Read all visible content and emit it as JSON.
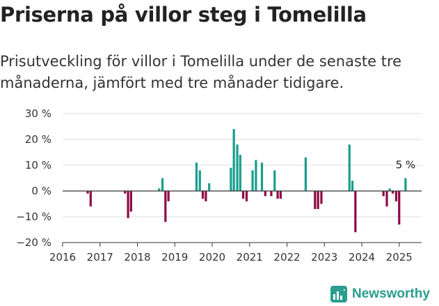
{
  "title": "Priserna på villor steg i Tomelilla",
  "subtitle": "Prisutveckling för villor i Tomelilla under de senaste tre månaderna, jämfört med tre månader tidigare.",
  "logo_text": "Newsworthy",
  "colors": {
    "positive": "#1a9e8f",
    "negative": "#8c0a47",
    "grid": "#dddddd",
    "axis": "#333333",
    "logo": "#2a9d8f"
  },
  "chart_data": {
    "type": "bar",
    "title": "Priserna på villor steg i Tomelilla",
    "xlabel": "",
    "ylabel": "",
    "ylim": [
      -20,
      30
    ],
    "xlim": [
      2016,
      2025.6
    ],
    "y_ticks": [
      -20,
      -10,
      0,
      10,
      20,
      30
    ],
    "y_tick_labels": [
      "−20 %",
      "−10 %",
      "0 %",
      "10 %",
      "20 %",
      "30 %"
    ],
    "x_ticks": [
      2016,
      2017,
      2018,
      2019,
      2020,
      2021,
      2022,
      2023,
      2024,
      2025
    ],
    "x_tick_labels": [
      "2016",
      "2017",
      "2018",
      "2019",
      "2020",
      "2021",
      "2022",
      "2023",
      "2024",
      "2025"
    ],
    "grid": "horizontal",
    "annotation": "5 %",
    "points": [
      {
        "x": 2016.67,
        "y": -1
      },
      {
        "x": 2016.75,
        "y": -6
      },
      {
        "x": 2017.67,
        "y": -1
      },
      {
        "x": 2017.75,
        "y": -10.5
      },
      {
        "x": 2017.83,
        "y": -8
      },
      {
        "x": 2018.58,
        "y": 1
      },
      {
        "x": 2018.67,
        "y": 5
      },
      {
        "x": 2018.75,
        "y": -12
      },
      {
        "x": 2018.83,
        "y": -4
      },
      {
        "x": 2019.58,
        "y": 11
      },
      {
        "x": 2019.67,
        "y": 8
      },
      {
        "x": 2019.75,
        "y": -3
      },
      {
        "x": 2019.83,
        "y": -4
      },
      {
        "x": 2019.92,
        "y": 3
      },
      {
        "x": 2020.5,
        "y": 9
      },
      {
        "x": 2020.58,
        "y": 24
      },
      {
        "x": 2020.67,
        "y": 18
      },
      {
        "x": 2020.75,
        "y": 14
      },
      {
        "x": 2020.83,
        "y": -3
      },
      {
        "x": 2020.92,
        "y": -4
      },
      {
        "x": 2021.08,
        "y": 8
      },
      {
        "x": 2021.17,
        "y": 12
      },
      {
        "x": 2021.33,
        "y": 11
      },
      {
        "x": 2021.42,
        "y": -2
      },
      {
        "x": 2021.58,
        "y": -2
      },
      {
        "x": 2021.67,
        "y": 8
      },
      {
        "x": 2021.75,
        "y": -3
      },
      {
        "x": 2021.83,
        "y": -3
      },
      {
        "x": 2022.5,
        "y": 13
      },
      {
        "x": 2022.75,
        "y": -7
      },
      {
        "x": 2022.83,
        "y": -7
      },
      {
        "x": 2022.92,
        "y": -5
      },
      {
        "x": 2023.67,
        "y": 18
      },
      {
        "x": 2023.75,
        "y": 4
      },
      {
        "x": 2023.83,
        "y": -16
      },
      {
        "x": 2024.58,
        "y": -2
      },
      {
        "x": 2024.67,
        "y": -6
      },
      {
        "x": 2024.75,
        "y": 1
      },
      {
        "x": 2024.83,
        "y": -1
      },
      {
        "x": 2024.92,
        "y": -4
      },
      {
        "x": 2025.0,
        "y": -13
      },
      {
        "x": 2025.17,
        "y": 5
      }
    ]
  }
}
